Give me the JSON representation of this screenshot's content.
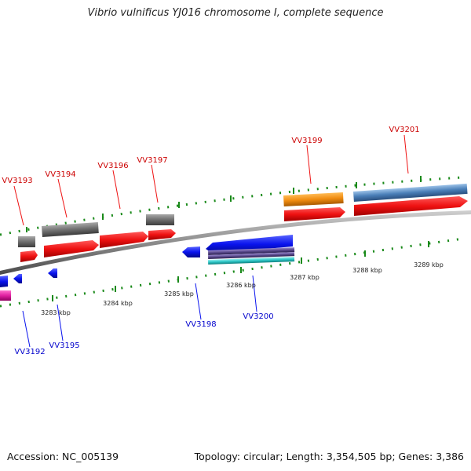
{
  "title": "Vibrio vulnificus YJ016 chromosome I, complete sequence",
  "accession": "Accession: NC_005139",
  "stats": "Topology: circular; Length: 3,354,505 bp; Genes: 3,386",
  "colors": {
    "forward_gene": "#ee1111",
    "reverse_gene": "#0a14ee",
    "pseudogene": "#6e6e6e",
    "rna": "#f08c10",
    "misc_feature_blue": "#4a7fb8",
    "misc_feature_cyan": "#2cc6c6",
    "misc_feature_purple": "#5a4a8c",
    "misc_feature_pink": "#e020a0",
    "ticks": "#1a8a1a",
    "backbone": "#8c8c8c",
    "forward_label": "#cc0000",
    "reverse_label": "#0000cc"
  },
  "kbp_labels": [
    "3283 kbp",
    "3284 kbp",
    "3285 kbp",
    "3286 kbp",
    "3287 kbp",
    "3288 kbp",
    "3289 kbp"
  ],
  "forward_genes": [
    "VV3193",
    "VV3194",
    "VV3196",
    "VV3197",
    "VV3199",
    "VV3201"
  ],
  "reverse_genes": [
    "VV3192",
    "VV3195",
    "VV3198",
    "VV3200"
  ]
}
